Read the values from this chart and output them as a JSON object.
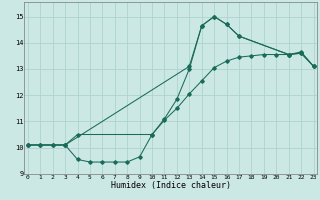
{
  "bg_color": "#cce8e4",
  "grid_color": "#aed4cf",
  "line_color": "#1a6b5a",
  "xlim": [
    -0.3,
    23.3
  ],
  "ylim": [
    9.0,
    15.55
  ],
  "yticks": [
    9,
    10,
    11,
    12,
    13,
    14,
    15
  ],
  "xticks": [
    0,
    1,
    2,
    3,
    4,
    5,
    6,
    7,
    8,
    9,
    10,
    11,
    12,
    13,
    14,
    15,
    16,
    17,
    18,
    19,
    20,
    21,
    22,
    23
  ],
  "xlabel": "Humidex (Indice chaleur)",
  "curve1_x": [
    0,
    1,
    2,
    3,
    13,
    14,
    15,
    16,
    17,
    21,
    22,
    23
  ],
  "curve1_y": [
    10.1,
    10.1,
    10.1,
    10.1,
    13.1,
    14.65,
    15.0,
    14.7,
    14.25,
    13.55,
    13.6,
    13.1
  ],
  "curve2_x": [
    0,
    1,
    2,
    3,
    4,
    5,
    6,
    7,
    8,
    9,
    10,
    11,
    12,
    13,
    14,
    15,
    16,
    17,
    21,
    22,
    23
  ],
  "curve2_y": [
    10.1,
    10.1,
    10.1,
    10.1,
    9.55,
    9.45,
    9.45,
    9.45,
    9.45,
    9.65,
    10.5,
    11.1,
    11.85,
    13.0,
    14.65,
    15.0,
    14.7,
    14.25,
    13.55,
    13.6,
    13.1
  ],
  "curve3_x": [
    0,
    3,
    4,
    10,
    11,
    12,
    13,
    14,
    15,
    16,
    17,
    18,
    19,
    20,
    21,
    22,
    23
  ],
  "curve3_y": [
    10.1,
    10.1,
    10.5,
    10.5,
    11.05,
    11.5,
    12.05,
    12.55,
    13.05,
    13.3,
    13.45,
    13.5,
    13.55,
    13.55,
    13.55,
    13.65,
    13.1
  ]
}
